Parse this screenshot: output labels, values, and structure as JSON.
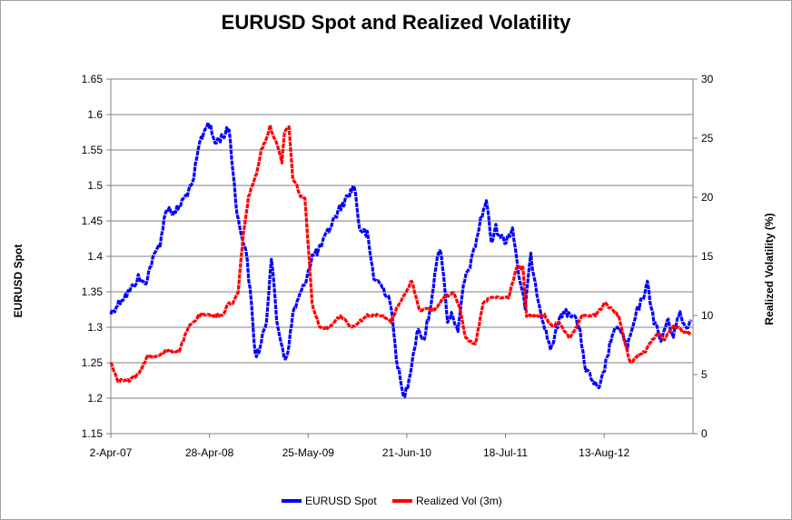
{
  "chart_data": {
    "type": "line",
    "title": "EURUSD Spot and Realized Volatility",
    "ylabel_left": "EURUSD Spot",
    "ylabel_right": "Realized Volatility (%)",
    "ylim_left": [
      1.15,
      1.65
    ],
    "ylim_right": [
      0,
      30
    ],
    "yticks_left": [
      "1.15",
      "1.2",
      "1.25",
      "1.3",
      "1.35",
      "1.4",
      "1.45",
      "1.5",
      "1.55",
      "1.6",
      "1.65"
    ],
    "yticks_right": [
      "0",
      "5",
      "10",
      "15",
      "20",
      "25",
      "30"
    ],
    "xlim": [
      "2007-04-02",
      "2013-08-01"
    ],
    "xticks": [
      {
        "date": "2007-04-02",
        "label": "2-Apr-07"
      },
      {
        "date": "2008-04-28",
        "label": "28-Apr-08"
      },
      {
        "date": "2009-05-25",
        "label": "25-May-09"
      },
      {
        "date": "2010-06-21",
        "label": "21-Jun-10"
      },
      {
        "date": "2011-07-18",
        "label": "18-Jul-11"
      },
      {
        "date": "2012-08-13",
        "label": "13-Aug-12"
      }
    ],
    "grid": "horizontal",
    "legend": "bottom",
    "series": [
      {
        "name": "EURUSD Spot",
        "axis": "left",
        "color": "#0000ff",
        "x": [
          "2007-04-02",
          "2007-05-15",
          "2007-06-15",
          "2007-07-20",
          "2007-08-15",
          "2007-09-10",
          "2007-10-15",
          "2007-11-10",
          "2007-12-10",
          "2008-01-15",
          "2008-02-20",
          "2008-03-20",
          "2008-04-22",
          "2008-05-20",
          "2008-06-20",
          "2008-07-15",
          "2008-08-10",
          "2008-08-25",
          "2008-09-20",
          "2008-10-12",
          "2008-10-27",
          "2008-11-15",
          "2008-12-10",
          "2008-12-30",
          "2009-01-20",
          "2009-02-18",
          "2009-03-05",
          "2009-03-25",
          "2009-05-10",
          "2009-06-10",
          "2009-07-10",
          "2009-08-05",
          "2009-09-15",
          "2009-10-20",
          "2009-11-25",
          "2009-12-15",
          "2010-01-15",
          "2010-02-10",
          "2010-03-10",
          "2010-04-15",
          "2010-05-10",
          "2010-06-07",
          "2010-06-25",
          "2010-08-05",
          "2010-08-25",
          "2010-09-20",
          "2010-10-15",
          "2010-11-04",
          "2010-11-30",
          "2010-12-20",
          "2011-01-10",
          "2011-02-01",
          "2011-03-10",
          "2011-04-10",
          "2011-05-03",
          "2011-05-23",
          "2011-06-10",
          "2011-07-15",
          "2011-08-15",
          "2011-09-15",
          "2011-10-04",
          "2011-10-27",
          "2011-11-25",
          "2011-12-20",
          "2012-01-13",
          "2012-02-28",
          "2012-04-15",
          "2012-05-10",
          "2012-06-01",
          "2012-07-24",
          "2012-08-20",
          "2012-09-14",
          "2012-10-15",
          "2012-11-13",
          "2012-12-20",
          "2013-02-01",
          "2013-02-27",
          "2013-03-27",
          "2013-04-20",
          "2013-05-15",
          "2013-06-10",
          "2013-07-01",
          "2013-07-25"
        ],
        "values": [
          1.32,
          1.34,
          1.35,
          1.37,
          1.36,
          1.39,
          1.42,
          1.47,
          1.46,
          1.48,
          1.5,
          1.56,
          1.59,
          1.56,
          1.57,
          1.58,
          1.48,
          1.44,
          1.41,
          1.33,
          1.26,
          1.27,
          1.31,
          1.4,
          1.31,
          1.26,
          1.26,
          1.32,
          1.36,
          1.4,
          1.41,
          1.43,
          1.46,
          1.48,
          1.5,
          1.44,
          1.43,
          1.37,
          1.36,
          1.34,
          1.26,
          1.2,
          1.22,
          1.3,
          1.28,
          1.32,
          1.39,
          1.41,
          1.31,
          1.32,
          1.29,
          1.36,
          1.4,
          1.45,
          1.48,
          1.42,
          1.44,
          1.42,
          1.44,
          1.36,
          1.33,
          1.4,
          1.34,
          1.3,
          1.27,
          1.32,
          1.32,
          1.29,
          1.24,
          1.21,
          1.25,
          1.29,
          1.3,
          1.27,
          1.32,
          1.36,
          1.31,
          1.28,
          1.31,
          1.29,
          1.32,
          1.3,
          1.31
        ]
      },
      {
        "name": "Realized Vol (3m)",
        "axis": "right",
        "color": "#ff0000",
        "x": [
          "2007-04-02",
          "2007-05-01",
          "2007-06-15",
          "2007-07-20",
          "2007-08-25",
          "2007-09-20",
          "2007-11-10",
          "2007-12-30",
          "2008-02-05",
          "2008-03-20",
          "2008-04-25",
          "2008-05-25",
          "2008-06-20",
          "2008-07-10",
          "2008-07-30",
          "2008-08-20",
          "2008-09-10",
          "2008-09-30",
          "2008-10-15",
          "2008-11-01",
          "2008-11-20",
          "2008-12-10",
          "2008-12-25",
          "2009-01-20",
          "2009-02-10",
          "2009-02-20",
          "2009-03-10",
          "2009-03-25",
          "2009-04-10",
          "2009-04-25",
          "2009-05-12",
          "2009-06-10",
          "2009-07-10",
          "2009-08-15",
          "2009-09-30",
          "2009-11-15",
          "2010-01-15",
          "2010-03-10",
          "2010-04-20",
          "2010-05-20",
          "2010-06-20",
          "2010-07-10",
          "2010-08-10",
          "2010-09-10",
          "2010-10-10",
          "2010-11-15",
          "2010-12-25",
          "2011-01-20",
          "2011-02-10",
          "2011-03-20",
          "2011-04-20",
          "2011-05-20",
          "2011-06-20",
          "2011-07-30",
          "2011-08-30",
          "2011-09-25",
          "2011-10-10",
          "2011-11-10",
          "2011-12-20",
          "2012-01-20",
          "2012-02-15",
          "2012-03-30",
          "2012-05-20",
          "2012-07-10",
          "2012-08-15",
          "2012-09-15",
          "2012-10-10",
          "2012-10-30",
          "2012-11-25",
          "2012-12-20",
          "2013-01-25",
          "2013-03-10",
          "2013-04-10",
          "2013-05-10",
          "2013-06-10",
          "2013-06-20",
          "2013-07-25"
        ],
        "values": [
          6,
          4.5,
          4.5,
          5,
          6.5,
          6.5,
          7,
          7,
          9,
          10,
          10,
          10,
          10,
          11,
          11,
          12,
          17,
          20,
          21,
          22,
          24,
          25,
          26,
          24.5,
          23,
          25.5,
          26,
          21.5,
          21,
          20,
          20,
          11,
          9,
          9,
          10,
          9,
          10,
          10,
          9.5,
          11,
          12,
          13,
          10.5,
          10.5,
          10.5,
          11.5,
          12,
          10.5,
          8,
          7.5,
          11,
          11.5,
          11.5,
          11.5,
          14,
          14,
          10,
          10,
          10,
          9,
          9.5,
          8,
          10,
          10,
          11,
          10.5,
          10,
          8,
          6,
          6.5,
          7,
          8.5,
          8,
          9,
          9,
          8.5,
          8.5
        ]
      }
    ]
  }
}
